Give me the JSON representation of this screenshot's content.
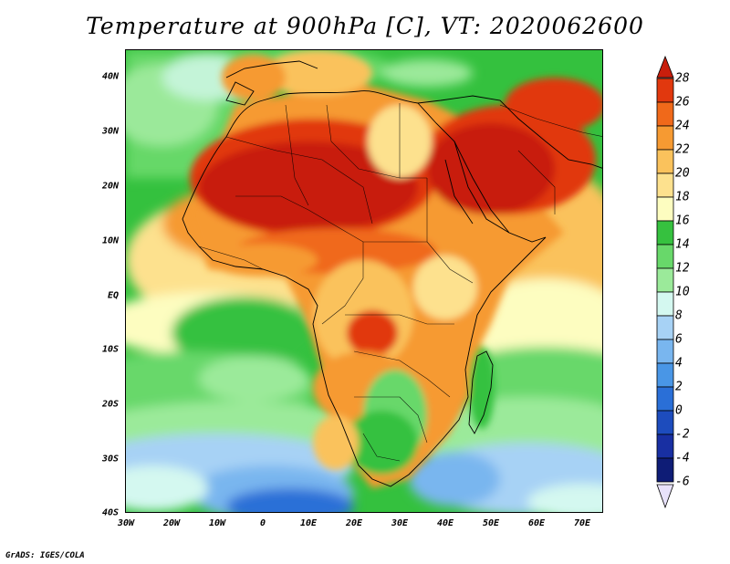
{
  "title": "Temperature at 900hPa [C], VT: 2020062600",
  "map": {
    "lat_labels": [
      "40N",
      "30N",
      "20N",
      "10N",
      "EQ",
      "10S",
      "20S",
      "30S",
      "40S"
    ],
    "lon_labels": [
      "30W",
      "20W",
      "10W",
      "0",
      "10E",
      "20E",
      "30E",
      "40E",
      "50E",
      "60E",
      "70E"
    ],
    "lat_range": [
      -40,
      45
    ],
    "lon_range": [
      -30,
      75
    ]
  },
  "colorbar": {
    "labels": [
      "28",
      "26",
      "24",
      "22",
      "20",
      "18",
      "16",
      "14",
      "12",
      "10",
      "8",
      "6",
      "4",
      "2",
      "0",
      "-2",
      "-4",
      "-6"
    ],
    "colors": [
      "#c81e0c",
      "#e1380e",
      "#f0691a",
      "#f69a32",
      "#fac25c",
      "#fde18e",
      "#fdfdc0",
      "#36c13f",
      "#68d86a",
      "#9bea9a",
      "#d4f8f0",
      "#a7d2f5",
      "#79b6ef",
      "#4996e6",
      "#2a6fd7",
      "#1d4cbd",
      "#182fa2",
      "#0e1c76"
    ]
  },
  "credit": "GrADS: IGES/COLA"
}
